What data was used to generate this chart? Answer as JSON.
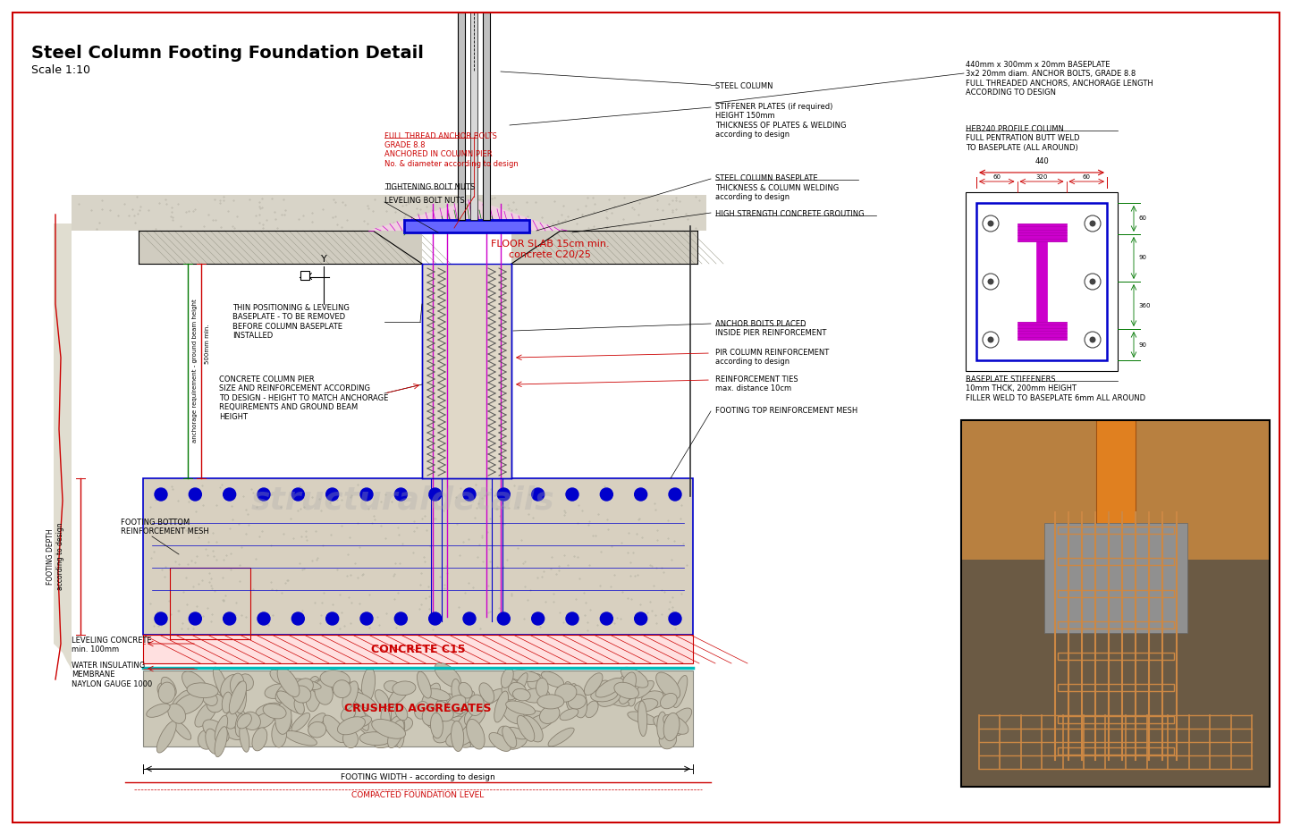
{
  "title": "Steel Column Footing Foundation Detail",
  "scale": "Scale 1:10",
  "bg_color": "#ffffff",
  "fig_width": 14.45,
  "fig_height": 9.34,
  "colors": {
    "red": "#cc0000",
    "darkred": "#8b0000",
    "blue": "#0000cc",
    "blue2": "#3333cc",
    "green": "#007700",
    "magenta": "#cc00cc",
    "cyan": "#00bbbb",
    "black": "#000000",
    "gray": "#888888",
    "lgray": "#cccccc",
    "concrete": "#d8d0c0",
    "concrete2": "#e0d8c8",
    "soil": "#c8c0a8",
    "aggregate": "#b8b098",
    "slab_gray": "#c0bcb0",
    "white": "#ffffff"
  },
  "notes_tr1": "440mm x 300mm x 20mm BASEPLATE\n3x2 20mm diam. ANCHOR BOLTS, GRADE 8.8\nFULL THREADED ANCHORS, ANCHORAGE LENGTH\nACCORDING TO DESIGN",
  "notes_tr2": "HEB240 PROFILE COLUMN\nFULL PENTRATION BUTT WELD\nTO BASEPLATE (ALL AROUND)",
  "notes_tr3": "BASEPLATE STIFFENERS\n10mm THCK, 200mm HEIGHT\nFILLER WELD TO BASEPLATE 6mm ALL AROUND",
  "watermark": "structuraldetails"
}
